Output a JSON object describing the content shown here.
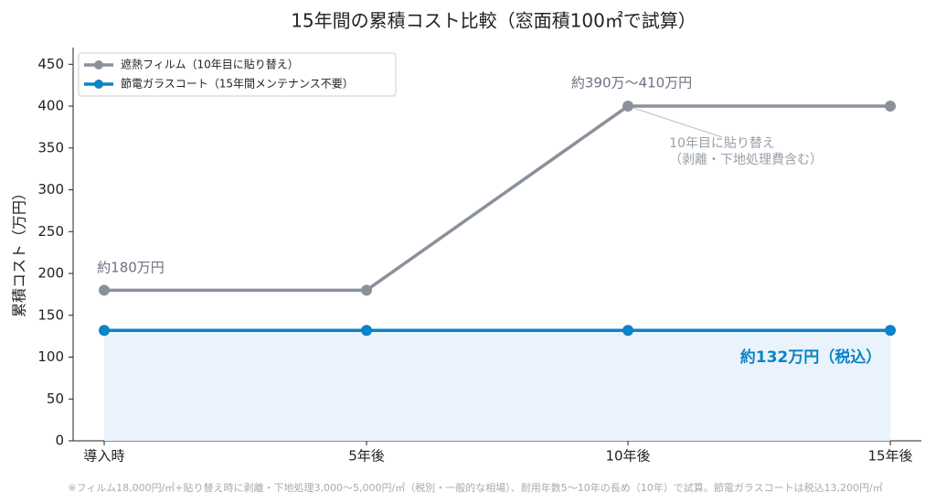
{
  "chart_data": {
    "type": "line",
    "title": "15年間の累積コスト比較（窓面積100㎡で試算）",
    "y_label": "累積コスト（万円）",
    "categories": [
      "導入時",
      "5年後",
      "10年後",
      "15年後"
    ],
    "series": [
      {
        "name": "遮熱フィルム（10年目に貼り替え）",
        "color": "#8a919c",
        "values": [
          180,
          180,
          400,
          400
        ]
      },
      {
        "name": "節電ガラスコート（15年間メンテナンス不要）",
        "color": "#0a84c6",
        "values": [
          132,
          132,
          132,
          132
        ],
        "fill": "#eaf3fb"
      }
    ],
    "ylim": [
      0,
      470
    ],
    "yticks": [
      0,
      50,
      100,
      150,
      200,
      250,
      300,
      350,
      400,
      450
    ],
    "legend": "upper left",
    "annotations": [
      "約180万円",
      "約390万～410万円",
      "10年目に貼り替え",
      "（剥離・下地処理費含む）",
      "約132万円（税込）"
    ],
    "footnote": "※フィルム18,000円/㎡+貼り替え時に剥離・下地処理3,000～5,000円/㎡（税別・一般的な相場）、耐用年数5～10年の長め（10年）で試算。節電ガラスコートは税込13,200円/㎡"
  }
}
